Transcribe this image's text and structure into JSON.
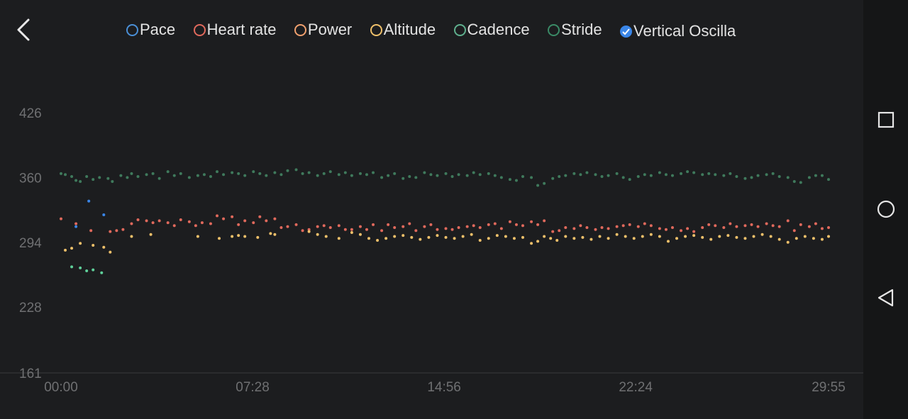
{
  "legend": {
    "items": [
      {
        "label": "Pace",
        "color": "#4a8fd6",
        "checked": false
      },
      {
        "label": "Heart rate",
        "color": "#e0695c",
        "checked": false
      },
      {
        "label": "Power",
        "color": "#f0a06e",
        "checked": false
      },
      {
        "label": "Altitude",
        "color": "#efc06a",
        "checked": false
      },
      {
        "label": "Cadence",
        "color": "#5fb08e",
        "checked": false
      },
      {
        "label": "Stride",
        "color": "#3a8a66",
        "checked": false
      },
      {
        "label": "Vertical Oscilla",
        "color": "#3a86e8",
        "checked": true
      }
    ]
  },
  "chart_data": {
    "type": "scatter",
    "y_ticks": [
      "426",
      "360",
      "294",
      "228",
      "161"
    ],
    "x_ticks": [
      "00:00",
      "07:28",
      "14:56",
      "22:24",
      "29:55"
    ],
    "ylim": [
      161,
      426
    ],
    "xlim": [
      0,
      1795
    ],
    "series": [
      {
        "color": "#3f7a5c",
        "points": [
          [
            0,
            364
          ],
          [
            10,
            363
          ],
          [
            25,
            361
          ],
          [
            35,
            357
          ],
          [
            45,
            356
          ],
          [
            60,
            361
          ],
          [
            75,
            358
          ],
          [
            90,
            360
          ],
          [
            110,
            359
          ],
          [
            120,
            356
          ],
          [
            140,
            362
          ],
          [
            155,
            360
          ],
          [
            165,
            364
          ],
          [
            180,
            361
          ],
          [
            200,
            363
          ],
          [
            215,
            364
          ],
          [
            230,
            359
          ],
          [
            250,
            366
          ],
          [
            265,
            362
          ],
          [
            280,
            364
          ],
          [
            300,
            360
          ],
          [
            320,
            362
          ],
          [
            335,
            363
          ],
          [
            350,
            361
          ],
          [
            365,
            366
          ],
          [
            380,
            363
          ],
          [
            400,
            365
          ],
          [
            415,
            364
          ],
          [
            430,
            362
          ],
          [
            450,
            366
          ],
          [
            465,
            364
          ],
          [
            480,
            362
          ],
          [
            500,
            365
          ],
          [
            515,
            363
          ],
          [
            530,
            367
          ],
          [
            550,
            368
          ],
          [
            565,
            364
          ],
          [
            580,
            365
          ],
          [
            600,
            362
          ],
          [
            615,
            364
          ],
          [
            630,
            366
          ],
          [
            650,
            363
          ],
          [
            665,
            365
          ],
          [
            680,
            362
          ],
          [
            700,
            364
          ],
          [
            715,
            363
          ],
          [
            730,
            365
          ],
          [
            750,
            360
          ],
          [
            765,
            362
          ],
          [
            780,
            364
          ],
          [
            800,
            359
          ],
          [
            815,
            361
          ],
          [
            830,
            360
          ],
          [
            850,
            365
          ],
          [
            865,
            363
          ],
          [
            880,
            362
          ],
          [
            900,
            364
          ],
          [
            915,
            361
          ],
          [
            930,
            363
          ],
          [
            950,
            362
          ],
          [
            965,
            365
          ],
          [
            980,
            363
          ],
          [
            1000,
            364
          ],
          [
            1015,
            362
          ],
          [
            1030,
            360
          ],
          [
            1050,
            358
          ],
          [
            1065,
            357
          ],
          [
            1080,
            361
          ],
          [
            1100,
            360
          ],
          [
            1115,
            352
          ],
          [
            1130,
            354
          ],
          [
            1150,
            359
          ],
          [
            1165,
            361
          ],
          [
            1180,
            362
          ],
          [
            1200,
            364
          ],
          [
            1215,
            363
          ],
          [
            1230,
            365
          ],
          [
            1250,
            363
          ],
          [
            1265,
            361
          ],
          [
            1280,
            362
          ],
          [
            1300,
            364
          ],
          [
            1315,
            360
          ],
          [
            1330,
            358
          ],
          [
            1350,
            361
          ],
          [
            1365,
            363
          ],
          [
            1380,
            362
          ],
          [
            1400,
            365
          ],
          [
            1415,
            363
          ],
          [
            1430,
            362
          ],
          [
            1450,
            364
          ],
          [
            1465,
            366
          ],
          [
            1480,
            365
          ],
          [
            1500,
            363
          ],
          [
            1515,
            364
          ],
          [
            1530,
            363
          ],
          [
            1550,
            362
          ],
          [
            1565,
            364
          ],
          [
            1580,
            361
          ],
          [
            1600,
            359
          ],
          [
            1615,
            360
          ],
          [
            1630,
            362
          ],
          [
            1650,
            363
          ],
          [
            1665,
            364
          ],
          [
            1680,
            361
          ],
          [
            1700,
            360
          ],
          [
            1715,
            356
          ],
          [
            1730,
            355
          ],
          [
            1750,
            360
          ],
          [
            1765,
            362
          ],
          [
            1780,
            362
          ],
          [
            1795,
            358
          ]
        ]
      },
      {
        "color": "#e0695c",
        "points": [
          [
            0,
            318
          ],
          [
            35,
            313
          ],
          [
            70,
            306
          ],
          [
            115,
            305
          ],
          [
            130,
            306
          ],
          [
            145,
            307
          ],
          [
            165,
            313
          ],
          [
            180,
            317
          ],
          [
            200,
            316
          ],
          [
            215,
            314
          ],
          [
            230,
            316
          ],
          [
            250,
            314
          ],
          [
            265,
            311
          ],
          [
            280,
            317
          ],
          [
            300,
            315
          ],
          [
            315,
            311
          ],
          [
            330,
            314
          ],
          [
            350,
            313
          ],
          [
            365,
            321
          ],
          [
            380,
            318
          ],
          [
            400,
            320
          ],
          [
            415,
            312
          ],
          [
            430,
            316
          ],
          [
            450,
            314
          ],
          [
            465,
            320
          ],
          [
            480,
            316
          ],
          [
            500,
            318
          ],
          [
            515,
            309
          ],
          [
            530,
            310
          ],
          [
            550,
            312
          ],
          [
            565,
            306
          ],
          [
            580,
            307
          ],
          [
            600,
            310
          ],
          [
            615,
            311
          ],
          [
            630,
            309
          ],
          [
            650,
            311
          ],
          [
            665,
            307
          ],
          [
            680,
            307
          ],
          [
            700,
            310
          ],
          [
            715,
            307
          ],
          [
            730,
            312
          ],
          [
            750,
            306
          ],
          [
            765,
            312
          ],
          [
            780,
            309
          ],
          [
            800,
            310
          ],
          [
            815,
            313
          ],
          [
            830,
            306
          ],
          [
            850,
            310
          ],
          [
            865,
            312
          ],
          [
            880,
            307
          ],
          [
            900,
            308
          ],
          [
            915,
            307
          ],
          [
            930,
            309
          ],
          [
            950,
            310
          ],
          [
            965,
            311
          ],
          [
            980,
            309
          ],
          [
            1000,
            312
          ],
          [
            1015,
            313
          ],
          [
            1030,
            308
          ],
          [
            1050,
            315
          ],
          [
            1065,
            312
          ],
          [
            1080,
            311
          ],
          [
            1100,
            315
          ],
          [
            1115,
            312
          ],
          [
            1130,
            316
          ],
          [
            1150,
            305
          ],
          [
            1165,
            306
          ],
          [
            1180,
            309
          ],
          [
            1200,
            308
          ],
          [
            1215,
            311
          ],
          [
            1230,
            309
          ],
          [
            1250,
            307
          ],
          [
            1265,
            309
          ],
          [
            1280,
            308
          ],
          [
            1300,
            310
          ],
          [
            1315,
            311
          ],
          [
            1330,
            312
          ],
          [
            1350,
            310
          ],
          [
            1365,
            313
          ],
          [
            1380,
            311
          ],
          [
            1400,
            308
          ],
          [
            1415,
            307
          ],
          [
            1430,
            309
          ],
          [
            1450,
            306
          ],
          [
            1465,
            308
          ],
          [
            1480,
            305
          ],
          [
            1500,
            309
          ],
          [
            1515,
            312
          ],
          [
            1530,
            311
          ],
          [
            1550,
            309
          ],
          [
            1565,
            313
          ],
          [
            1580,
            310
          ],
          [
            1600,
            311
          ],
          [
            1615,
            312
          ],
          [
            1630,
            310
          ],
          [
            1650,
            313
          ],
          [
            1665,
            311
          ],
          [
            1680,
            310
          ],
          [
            1700,
            316
          ],
          [
            1715,
            306
          ],
          [
            1730,
            312
          ],
          [
            1750,
            310
          ],
          [
            1765,
            313
          ],
          [
            1780,
            308
          ],
          [
            1795,
            309
          ]
        ]
      },
      {
        "color": "#efc06a",
        "points": [
          [
            10,
            286
          ],
          [
            25,
            288
          ],
          [
            45,
            293
          ],
          [
            75,
            291
          ],
          [
            100,
            289
          ],
          [
            115,
            284
          ],
          [
            165,
            300
          ],
          [
            210,
            302
          ],
          [
            320,
            300
          ],
          [
            370,
            298
          ],
          [
            400,
            300
          ],
          [
            415,
            301
          ],
          [
            430,
            300
          ],
          [
            460,
            299
          ],
          [
            490,
            303
          ],
          [
            500,
            302
          ],
          [
            580,
            305
          ],
          [
            600,
            302
          ],
          [
            620,
            300
          ],
          [
            650,
            298
          ],
          [
            680,
            304
          ],
          [
            700,
            302
          ],
          [
            720,
            298
          ],
          [
            740,
            296
          ],
          [
            760,
            298
          ],
          [
            780,
            300
          ],
          [
            800,
            301
          ],
          [
            820,
            299
          ],
          [
            840,
            297
          ],
          [
            860,
            299
          ],
          [
            880,
            301
          ],
          [
            900,
            299
          ],
          [
            920,
            298
          ],
          [
            940,
            300
          ],
          [
            960,
            302
          ],
          [
            980,
            296
          ],
          [
            1000,
            298
          ],
          [
            1020,
            301
          ],
          [
            1040,
            300
          ],
          [
            1060,
            298
          ],
          [
            1080,
            299
          ],
          [
            1100,
            293
          ],
          [
            1115,
            295
          ],
          [
            1130,
            300
          ],
          [
            1145,
            298
          ],
          [
            1160,
            296
          ],
          [
            1180,
            300
          ],
          [
            1200,
            298
          ],
          [
            1220,
            299
          ],
          [
            1240,
            297
          ],
          [
            1260,
            300
          ],
          [
            1280,
            298
          ],
          [
            1300,
            302
          ],
          [
            1320,
            300
          ],
          [
            1340,
            298
          ],
          [
            1360,
            300
          ],
          [
            1380,
            302
          ],
          [
            1400,
            300
          ],
          [
            1420,
            295
          ],
          [
            1440,
            298
          ],
          [
            1460,
            300
          ],
          [
            1480,
            301
          ],
          [
            1500,
            299
          ],
          [
            1520,
            297
          ],
          [
            1540,
            300
          ],
          [
            1560,
            301
          ],
          [
            1580,
            299
          ],
          [
            1600,
            298
          ],
          [
            1620,
            300
          ],
          [
            1640,
            302
          ],
          [
            1660,
            300
          ],
          [
            1680,
            297
          ],
          [
            1700,
            294
          ],
          [
            1720,
            298
          ],
          [
            1740,
            300
          ],
          [
            1760,
            298
          ],
          [
            1780,
            297
          ],
          [
            1795,
            300
          ]
        ]
      },
      {
        "color": "#5fd09a",
        "points": [
          [
            25,
            269
          ],
          [
            45,
            268
          ],
          [
            60,
            265
          ],
          [
            75,
            266
          ],
          [
            95,
            263
          ]
        ]
      },
      {
        "color": "#3a86e8",
        "points": [
          [
            35,
            310
          ],
          [
            65,
            336
          ],
          [
            100,
            322
          ]
        ]
      }
    ]
  },
  "nav": {
    "back_icon": "chevron-left-icon",
    "recents_icon": "square-icon",
    "home_icon": "circle-icon",
    "back_nav_icon": "triangle-left-icon"
  }
}
